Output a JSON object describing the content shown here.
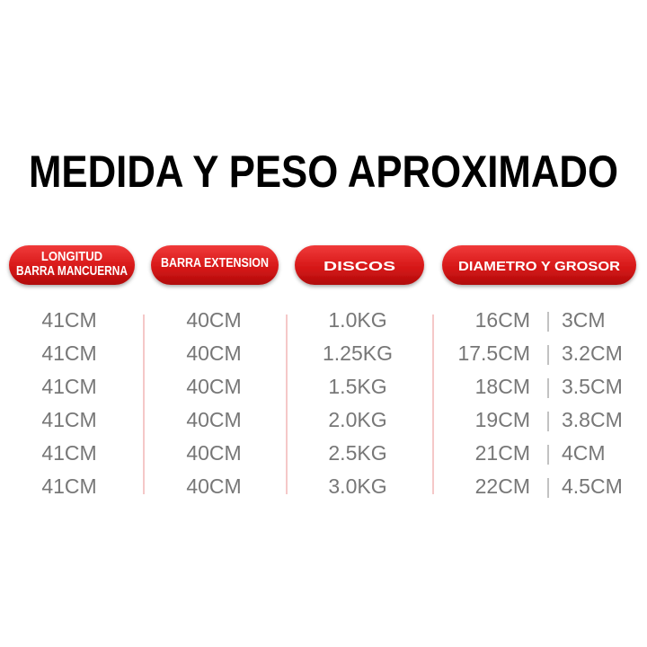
{
  "title": "MEDIDA Y PESO APROXIMADO",
  "table": {
    "headers": [
      [
        "LONGITUD",
        "BARRA MANCUERNA"
      ],
      [
        "BARRA EXTENSION"
      ],
      [
        "DISCOS"
      ],
      [
        "DIAMETRO Y GROSOR"
      ]
    ],
    "rows": [
      [
        "41CM",
        "40CM",
        "1.0KG",
        "16CM",
        "3CM"
      ],
      [
        "41CM",
        "40CM",
        "1.25KG",
        "17.5CM",
        "3.2CM"
      ],
      [
        "41CM",
        "40CM",
        "1.5KG",
        "18CM",
        "3.5CM"
      ],
      [
        "41CM",
        "40CM",
        "2.0KG",
        "19CM",
        "3.8CM"
      ],
      [
        "41CM",
        "40CM",
        "2.5KG",
        "21CM",
        "4CM"
      ],
      [
        "41CM",
        "40CM",
        "3.0KG",
        "22CM",
        "4.5CM"
      ]
    ]
  }
}
